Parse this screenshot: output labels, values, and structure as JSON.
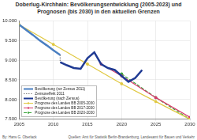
{
  "chart_data": {
    "type": "line",
    "title": "Doberlug-Kirchhain: Bevölkerungsentwicklung (2005-2023) und Prognosen (bis 2030) in den aktuellen Grenzen",
    "author": "By: Hans G. Oberlack",
    "source": "Quellen: Amt für Statistik Berlin-Brandenburg, Landesamt für Bauen und Verkehr",
    "xlim": [
      2005,
      2030
    ],
    "xticks": [
      2005,
      2010,
      2015,
      2020,
      2025,
      2030
    ],
    "ylim": [
      7500,
      10000
    ],
    "yticks": [
      {
        "value": 7500,
        "label": "7.500"
      },
      {
        "value": 8000,
        "label": "8.000"
      },
      {
        "value": 8500,
        "label": "8.500"
      },
      {
        "value": 9000,
        "label": "9.000"
      },
      {
        "value": 9500,
        "label": "9.500"
      },
      {
        "value": 10000,
        "label": "10.000"
      }
    ],
    "grid": true,
    "legend": "lower left",
    "series": [
      {
        "name": "Bevölkerung (vor Zensus 2011)",
        "color": "#4a7fc1",
        "line_style": "solid",
        "marker": "none",
        "x": [
          2005,
          2006,
          2007,
          2008,
          2009,
          2010,
          2011
        ],
        "values": [
          9900,
          9770,
          9640,
          9500,
          9380,
          9250,
          9130
        ]
      },
      {
        "name": "Zensuseffekt 2011",
        "color": "#7f7f7f",
        "line_style": "dotted",
        "marker": "none",
        "x": [
          2011,
          2011
        ],
        "values": [
          9130,
          8950
        ]
      },
      {
        "name": "Bevölkerung (nach Zensus)",
        "color": "#1f3a93",
        "line_style": "solid",
        "marker": "none",
        "x": [
          2011,
          2012,
          2013,
          2014,
          2015,
          2016,
          2017,
          2018,
          2019,
          2020,
          2021,
          2022,
          2023
        ],
        "values": [
          8950,
          8870,
          8800,
          8780,
          9050,
          9200,
          8900,
          8800,
          8750,
          8600,
          8450,
          8550,
          8750
        ]
      },
      {
        "name": "Prognose des Landes BB 2005-2030",
        "color": "#e0c840",
        "line_style": "solid",
        "marker": "circle",
        "x": [
          2005,
          2010,
          2015,
          2020,
          2025,
          2030
        ],
        "values": [
          9900,
          9400,
          8900,
          8400,
          7950,
          7500
        ]
      },
      {
        "name": "Prognose des Landes BB 2017-2030",
        "color": "#d63c6a",
        "line_style": "solid",
        "marker": "circle",
        "x": [
          2017,
          2020,
          2025,
          2030
        ],
        "values": [
          8900,
          8600,
          8050,
          7550
        ]
      },
      {
        "name": "Prognose des Landes BB 2020-2030",
        "color": "#3aa53a",
        "line_style": "dashed",
        "marker": "circle",
        "x": [
          2020,
          2025,
          2030
        ],
        "values": [
          8650,
          8050,
          7500
        ]
      }
    ]
  }
}
